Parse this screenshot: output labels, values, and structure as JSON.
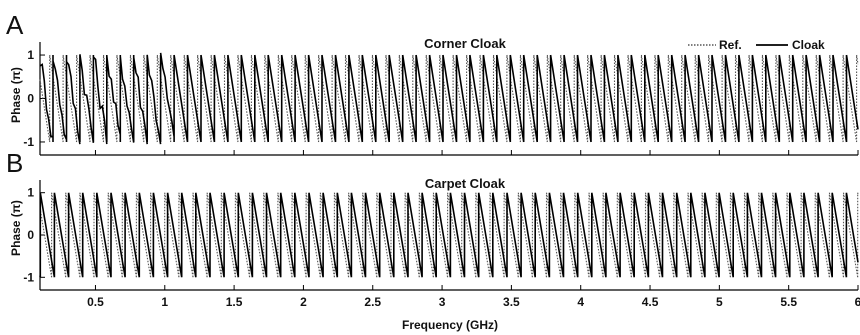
{
  "chart_data": [
    {
      "panel_letter": "A",
      "type": "line",
      "title": "Corner Cloak",
      "ylabel": "Phase (π)",
      "xlabel": "",
      "xlim": [
        0.1,
        6.0
      ],
      "ylim": [
        -1.3,
        1.3
      ],
      "yticks": [
        1,
        0,
        -1
      ],
      "ytick_labels": [
        "1",
        "0",
        "-1"
      ],
      "xticks": [
        0.5,
        1,
        1.5,
        2,
        2.5,
        3,
        3.5,
        4,
        4.5,
        5,
        5.5,
        6
      ],
      "xtick_labels": [],
      "legend": {
        "position": "top-right",
        "entries": [
          "Ref.",
          "Cloak"
        ]
      },
      "series": [
        {
          "name": "Ref.",
          "style": "dotted",
          "color": "#555555",
          "shape": "sawtooth-wrapped phase",
          "period_GHz": 0.097,
          "phase_offset": 0.25,
          "range": [
            -1,
            1
          ]
        },
        {
          "name": "Cloak",
          "style": "solid",
          "color": "#000000",
          "shape": "sawtooth-wrapped phase",
          "period_GHz": 0.097,
          "phase_offset": 0.0,
          "range": [
            -1,
            1
          ],
          "noisy_below_GHz": 1.0
        }
      ]
    },
    {
      "panel_letter": "B",
      "type": "line",
      "title": "Carpet Cloak",
      "ylabel": "Phase (π)",
      "xlabel": "Frequency (GHz)",
      "xlim": [
        0.1,
        6.0
      ],
      "ylim": [
        -1.3,
        1.3
      ],
      "yticks": [
        1,
        0,
        -1
      ],
      "ytick_labels": [
        "1",
        "0",
        "-1"
      ],
      "xticks": [
        0.5,
        1,
        1.5,
        2,
        2.5,
        3,
        3.5,
        4,
        4.5,
        5,
        5.5,
        6
      ],
      "xtick_labels": [
        "0.5",
        "1",
        "1.5",
        "2",
        "2.5",
        "3",
        "3.5",
        "4",
        "4.5",
        "5",
        "5.5",
        "6"
      ],
      "series": [
        {
          "name": "Ref.",
          "style": "dotted",
          "color": "#555555",
          "shape": "sawtooth-wrapped phase",
          "period_GHz": 0.102,
          "phase_offset": 0.2,
          "range": [
            -1,
            1
          ]
        },
        {
          "name": "Cloak",
          "style": "solid",
          "color": "#000000",
          "shape": "sawtooth-wrapped phase",
          "period_GHz": 0.102,
          "phase_offset": 0.0,
          "range": [
            -1,
            1
          ]
        }
      ]
    }
  ]
}
